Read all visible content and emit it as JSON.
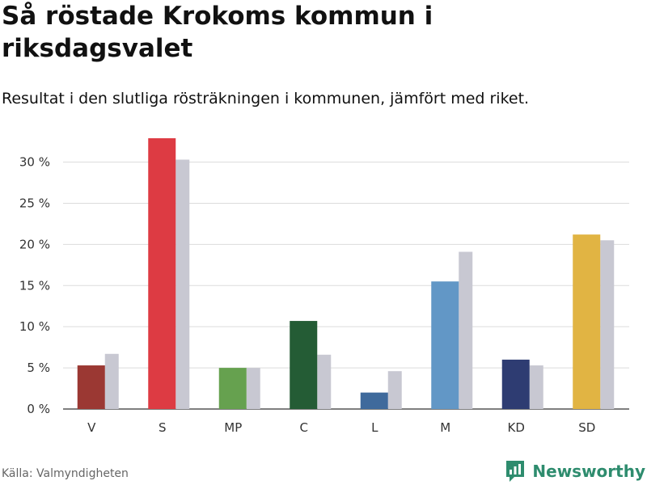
{
  "header": {
    "title": "Så röstade Krokoms kommun i riksdagsvalet",
    "subtitle": "Resultat i den slutliga rösträkningen i kommunen, jämfört med riket."
  },
  "chart_data": {
    "type": "bar",
    "title": "Så röstade Krokoms kommun i riksdagsvalet",
    "subtitle": "Resultat i den slutliga rösträkningen i kommunen, jämfört med riket.",
    "categories": [
      "V",
      "S",
      "MP",
      "C",
      "L",
      "M",
      "KD",
      "SD"
    ],
    "series": [
      {
        "name": "Krokoms kommun",
        "values": [
          5.3,
          32.9,
          5.0,
          10.7,
          2.0,
          15.5,
          6.0,
          21.2
        ],
        "colors": [
          "#9b3833",
          "#dd3b43",
          "#66a14f",
          "#245c35",
          "#3f6a9c",
          "#6297c6",
          "#2e3c72",
          "#e1b443"
        ]
      },
      {
        "name": "Riket",
        "values": [
          6.7,
          30.3,
          5.0,
          6.6,
          4.6,
          19.1,
          5.3,
          20.5
        ],
        "color": "#c8c8d2"
      }
    ],
    "ylim": [
      0,
      33
    ],
    "yticks": [
      0,
      5,
      10,
      15,
      20,
      25,
      30
    ],
    "ytick_labels": [
      "0 %",
      "5 %",
      "10 %",
      "15 %",
      "20 %",
      "25 %",
      "30 %"
    ],
    "xlabel": "",
    "ylabel": "",
    "grid": true
  },
  "footer": {
    "source": "Källa: Valmyndigheten",
    "brand": "Newsworthy",
    "brand_color": "#2e8c6e"
  }
}
